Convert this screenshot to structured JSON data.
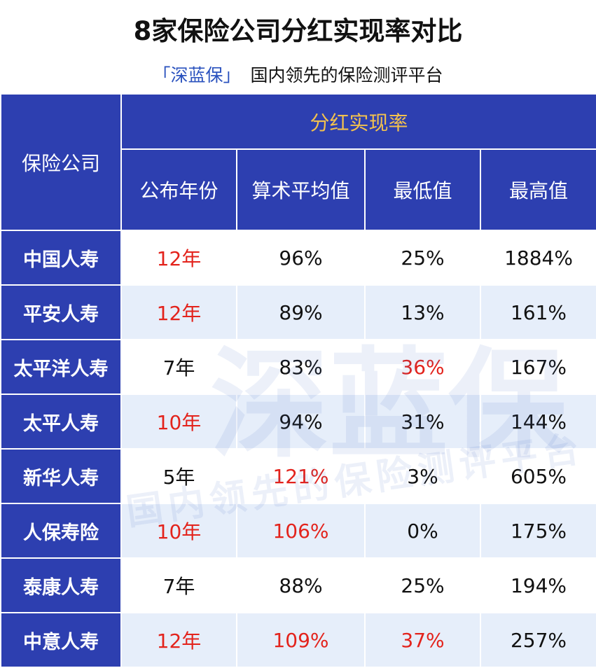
{
  "header": {
    "title": "8家保险公司分红实现率对比",
    "brand": "「深蓝保」",
    "tagline": "国内领先的保险测评平台"
  },
  "watermark": {
    "brand": "深蓝保",
    "tagline": "国内领先的保险测评平台"
  },
  "table": {
    "corner": "保险公司",
    "group": "分红实现率",
    "columns": [
      "公布年份",
      "算术平均值",
      "最低值",
      "最高值"
    ],
    "rows": [
      [
        "中国人寿",
        "12年",
        "96%",
        "25%",
        "1884%"
      ],
      [
        "平安人寿",
        "12年",
        "89%",
        "13%",
        "161%"
      ],
      [
        "太平洋人寿",
        "7年",
        "83%",
        "36%",
        "167%"
      ],
      [
        "太平人寿",
        "10年",
        "94%",
        "31%",
        "144%"
      ],
      [
        "新华人寿",
        "5年",
        "121%",
        "3%",
        "605%"
      ],
      [
        "人保寿险",
        "10年",
        "106%",
        "0%",
        "175%"
      ],
      [
        "泰康人寿",
        "7年",
        "88%",
        "25%",
        "194%"
      ],
      [
        "中意人寿",
        "12年",
        "109%",
        "37%",
        "257%"
      ]
    ],
    "highlight_color": "#e3231c",
    "highlighted": [
      [
        0,
        1
      ],
      [
        1,
        1
      ],
      [
        2,
        3
      ],
      [
        3,
        1
      ],
      [
        4,
        2
      ],
      [
        5,
        1
      ],
      [
        5,
        2
      ],
      [
        7,
        1
      ],
      [
        7,
        2
      ],
      [
        7,
        3
      ]
    ]
  }
}
